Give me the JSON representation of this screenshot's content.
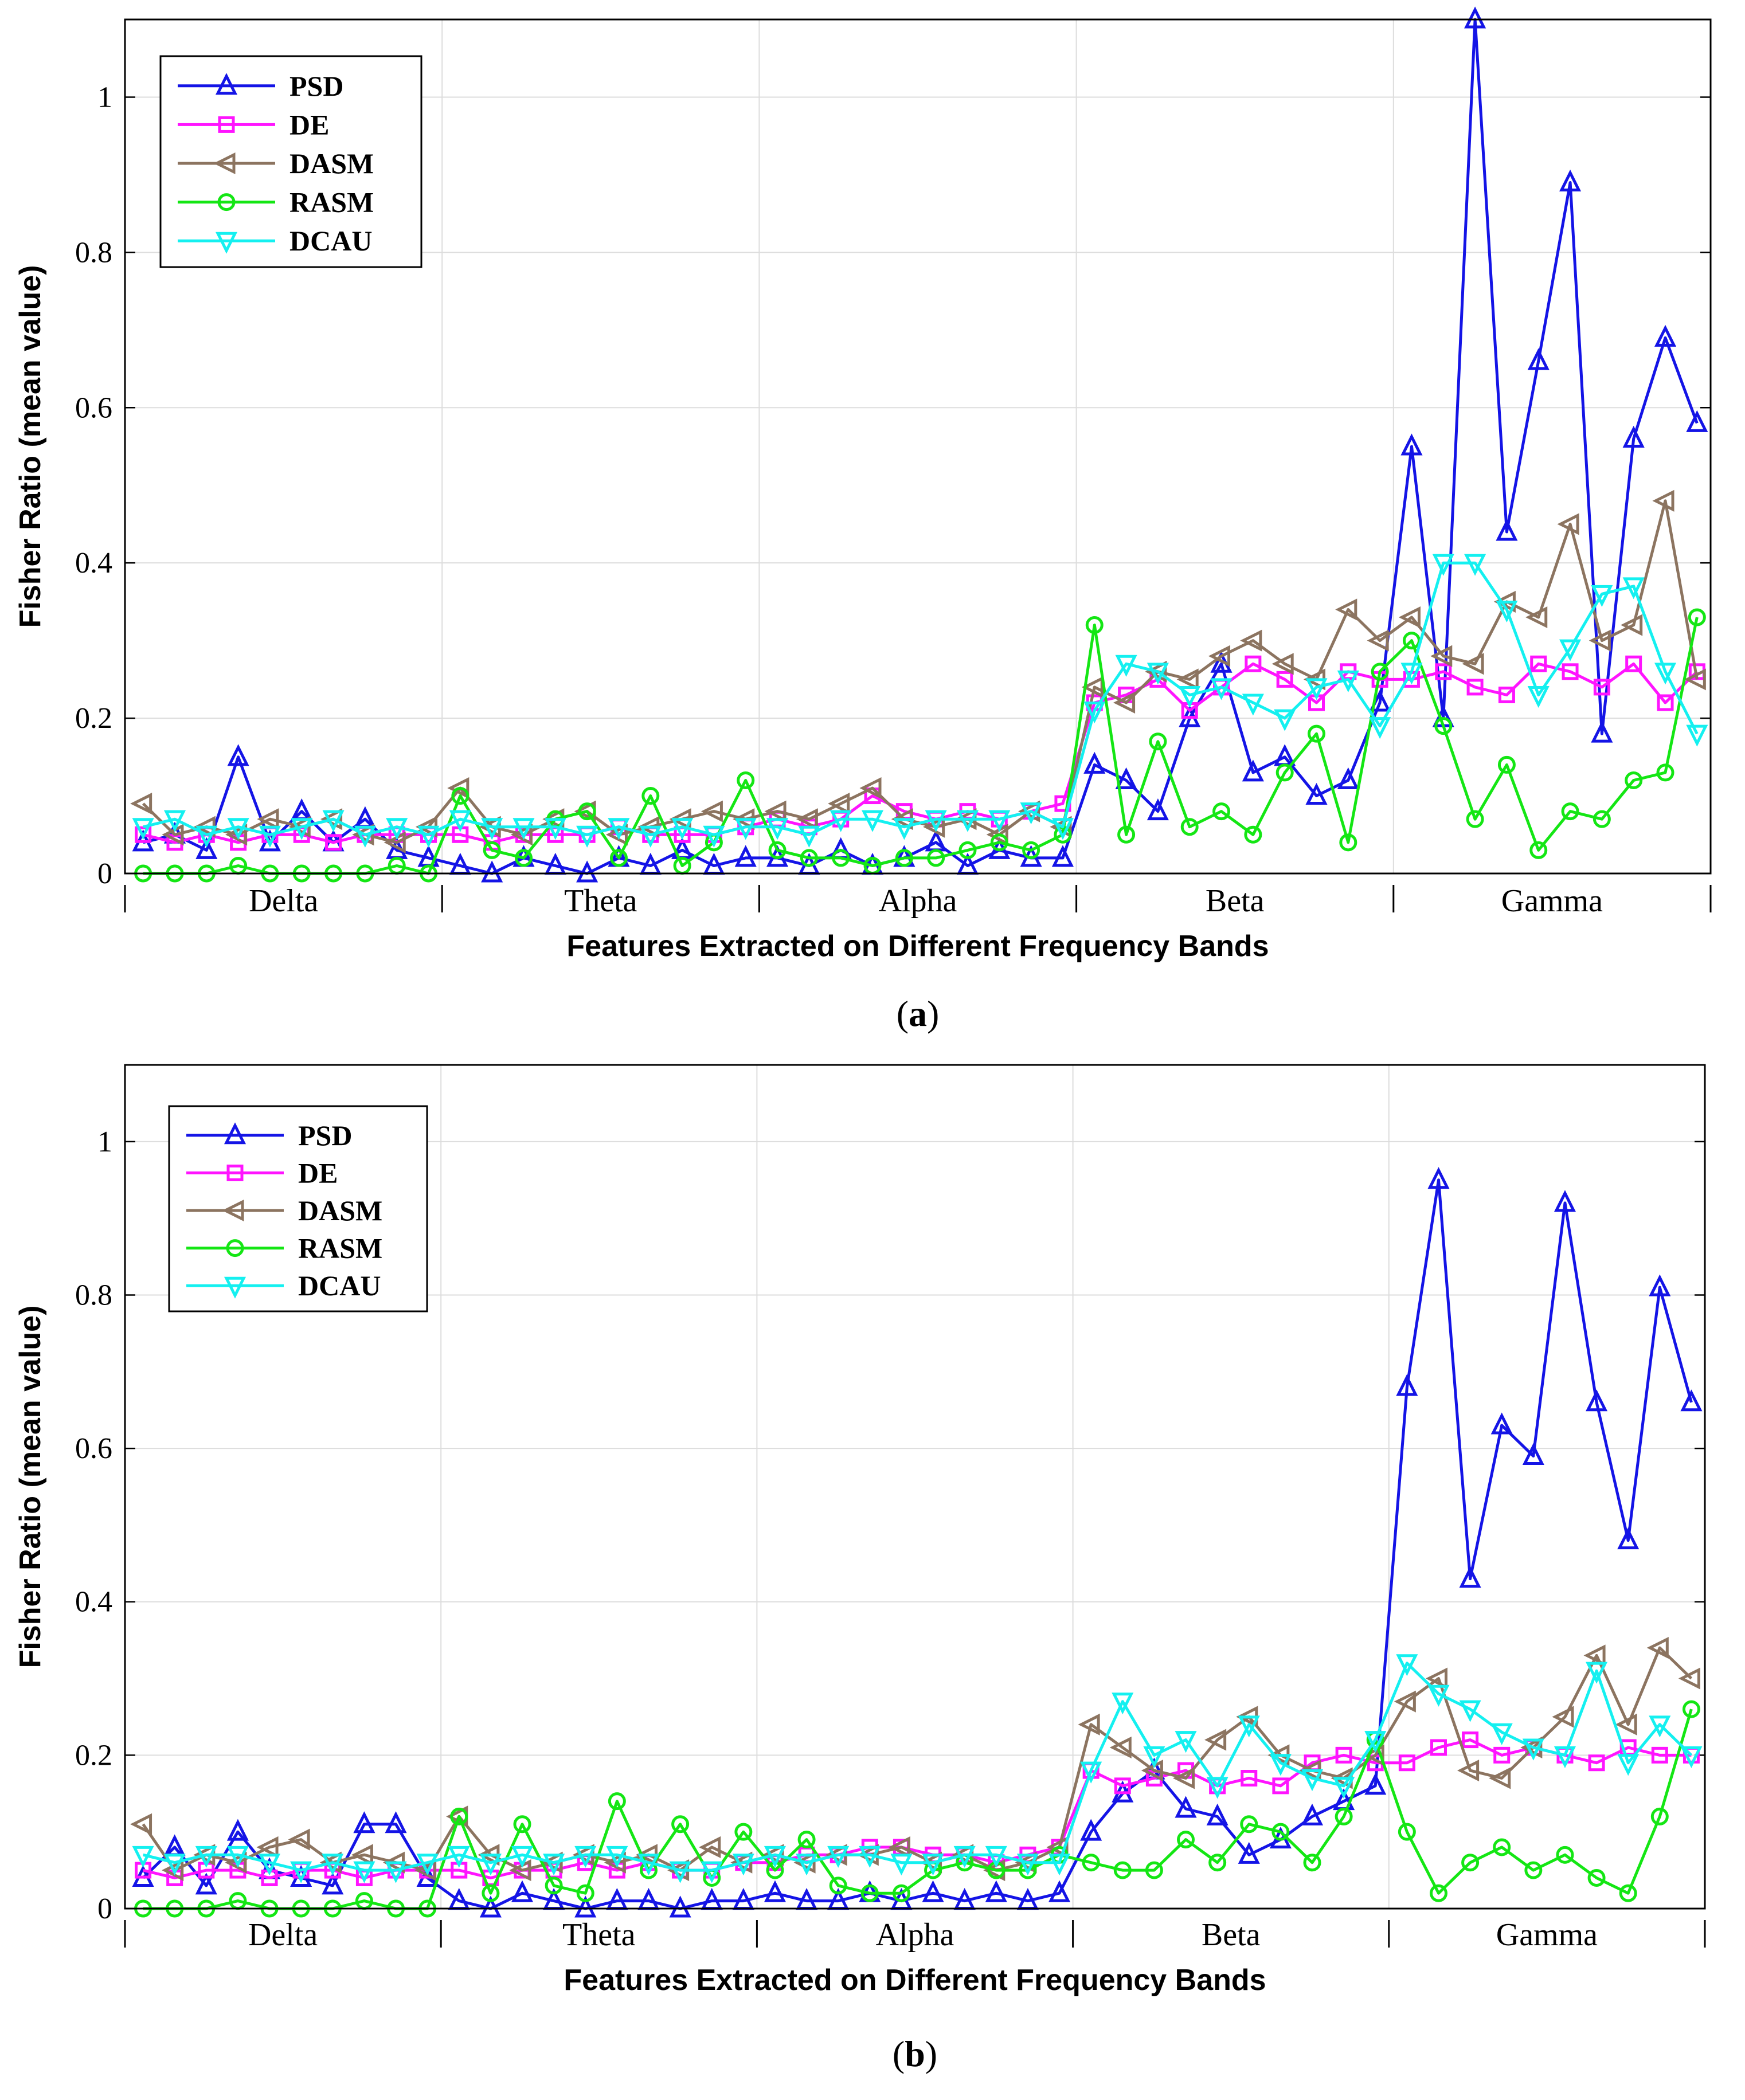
{
  "figure": {
    "panel_labels": [
      "a",
      "b"
    ],
    "series_styles": [
      {
        "name": "PSD",
        "color": "#1414e6",
        "marker": "triangle-up"
      },
      {
        "name": "DE",
        "color": "#ff14ff",
        "marker": "square"
      },
      {
        "name": "DASM",
        "color": "#8c7460",
        "marker": "triangle-left"
      },
      {
        "name": "RASM",
        "color": "#14e614",
        "marker": "circle"
      },
      {
        "name": "DCAU",
        "color": "#14f0f0",
        "marker": "triangle-down"
      }
    ]
  },
  "chart_data": [
    {
      "type": "line",
      "panel": "a",
      "ylabel": "Fisher Ratio (mean value)",
      "xlabel": "Features Extracted on Different Frequency Bands",
      "ylim": [
        0,
        1.1
      ],
      "yticks": [
        0,
        0.2,
        0.4,
        0.6,
        0.8,
        1
      ],
      "ytick_labels": [
        "0",
        "0.2",
        "0.4",
        "0.6",
        "0.8",
        "1"
      ],
      "grid": true,
      "legend_position": "top-left",
      "band_labels": [
        "Delta",
        "Theta",
        "Alpha",
        "Beta",
        "Gamma"
      ],
      "points_per_band": 10,
      "series": [
        {
          "name": "PSD",
          "values": [
            0.04,
            0.05,
            0.03,
            0.15,
            0.04,
            0.08,
            0.04,
            0.07,
            0.03,
            0.02,
            0.01,
            0.0,
            0.02,
            0.01,
            0.0,
            0.02,
            0.01,
            0.03,
            0.01,
            0.02,
            0.02,
            0.01,
            0.03,
            0.01,
            0.02,
            0.04,
            0.01,
            0.03,
            0.02,
            0.02,
            0.14,
            0.12,
            0.08,
            0.2,
            0.27,
            0.13,
            0.15,
            0.1,
            0.12,
            0.22,
            0.55,
            0.2,
            1.1,
            0.44,
            0.66,
            0.89,
            0.18,
            0.56,
            0.69,
            0.58
          ]
        },
        {
          "name": "DE",
          "values": [
            0.05,
            0.04,
            0.05,
            0.04,
            0.05,
            0.05,
            0.04,
            0.05,
            0.05,
            0.05,
            0.05,
            0.04,
            0.05,
            0.05,
            0.05,
            0.06,
            0.05,
            0.05,
            0.05,
            0.06,
            0.07,
            0.06,
            0.07,
            0.1,
            0.08,
            0.07,
            0.08,
            0.07,
            0.08,
            0.09,
            0.22,
            0.23,
            0.25,
            0.21,
            0.24,
            0.27,
            0.25,
            0.22,
            0.26,
            0.25,
            0.25,
            0.26,
            0.24,
            0.23,
            0.27,
            0.26,
            0.24,
            0.27,
            0.22,
            0.26
          ]
        },
        {
          "name": "DASM",
          "values": [
            0.09,
            0.05,
            0.06,
            0.05,
            0.07,
            0.06,
            0.07,
            0.05,
            0.04,
            0.06,
            0.11,
            0.06,
            0.05,
            0.07,
            0.08,
            0.05,
            0.06,
            0.07,
            0.08,
            0.07,
            0.08,
            0.07,
            0.09,
            0.11,
            0.07,
            0.06,
            0.07,
            0.05,
            0.08,
            0.06,
            0.24,
            0.22,
            0.26,
            0.25,
            0.28,
            0.3,
            0.27,
            0.25,
            0.34,
            0.3,
            0.33,
            0.28,
            0.27,
            0.35,
            0.33,
            0.45,
            0.3,
            0.32,
            0.48,
            0.25
          ]
        },
        {
          "name": "RASM",
          "values": [
            0.0,
            0.0,
            0.0,
            0.01,
            0.0,
            0.0,
            0.0,
            0.0,
            0.01,
            0.0,
            0.1,
            0.03,
            0.02,
            0.07,
            0.08,
            0.02,
            0.1,
            0.01,
            0.04,
            0.12,
            0.03,
            0.02,
            0.02,
            0.01,
            0.02,
            0.02,
            0.03,
            0.04,
            0.03,
            0.05,
            0.32,
            0.05,
            0.17,
            0.06,
            0.08,
            0.05,
            0.13,
            0.18,
            0.04,
            0.26,
            0.3,
            0.19,
            0.07,
            0.14,
            0.03,
            0.08,
            0.07,
            0.12,
            0.13,
            0.33
          ]
        },
        {
          "name": "DCAU",
          "values": [
            0.06,
            0.07,
            0.05,
            0.06,
            0.05,
            0.06,
            0.07,
            0.05,
            0.06,
            0.05,
            0.07,
            0.06,
            0.06,
            0.06,
            0.05,
            0.06,
            0.05,
            0.06,
            0.05,
            0.06,
            0.06,
            0.05,
            0.07,
            0.07,
            0.06,
            0.07,
            0.07,
            0.07,
            0.08,
            0.06,
            0.21,
            0.27,
            0.26,
            0.23,
            0.24,
            0.22,
            0.2,
            0.24,
            0.25,
            0.19,
            0.26,
            0.4,
            0.4,
            0.34,
            0.23,
            0.29,
            0.36,
            0.37,
            0.26,
            0.18
          ]
        }
      ]
    },
    {
      "type": "line",
      "panel": "b",
      "ylabel": "Fisher Ratio (mean value)",
      "xlabel": "Features Extracted on Different Frequency Bands",
      "ylim": [
        0,
        1.1
      ],
      "yticks": [
        0,
        0.2,
        0.4,
        0.6,
        0.8,
        1
      ],
      "ytick_labels": [
        "0",
        "0.2",
        "0.4",
        "0.6",
        "0.8",
        "1"
      ],
      "grid": true,
      "legend_position": "top-left",
      "band_labels": [
        "Delta",
        "Theta",
        "Alpha",
        "Beta",
        "Gamma"
      ],
      "points_per_band": 10,
      "series": [
        {
          "name": "PSD",
          "values": [
            0.04,
            0.08,
            0.03,
            0.1,
            0.05,
            0.04,
            0.03,
            0.11,
            0.11,
            0.04,
            0.01,
            0.0,
            0.02,
            0.01,
            0.0,
            0.01,
            0.01,
            0.0,
            0.01,
            0.01,
            0.02,
            0.01,
            0.01,
            0.02,
            0.01,
            0.02,
            0.01,
            0.02,
            0.01,
            0.02,
            0.1,
            0.15,
            0.18,
            0.13,
            0.12,
            0.07,
            0.09,
            0.12,
            0.14,
            0.16,
            0.68,
            0.95,
            0.43,
            0.63,
            0.59,
            0.92,
            0.66,
            0.48,
            0.81,
            0.66
          ]
        },
        {
          "name": "DE",
          "values": [
            0.05,
            0.04,
            0.05,
            0.05,
            0.04,
            0.05,
            0.05,
            0.04,
            0.05,
            0.05,
            0.05,
            0.04,
            0.05,
            0.05,
            0.06,
            0.05,
            0.06,
            0.05,
            0.05,
            0.06,
            0.06,
            0.07,
            0.07,
            0.08,
            0.08,
            0.07,
            0.07,
            0.06,
            0.07,
            0.08,
            0.18,
            0.16,
            0.17,
            0.18,
            0.16,
            0.17,
            0.16,
            0.19,
            0.2,
            0.19,
            0.19,
            0.21,
            0.22,
            0.2,
            0.21,
            0.2,
            0.19,
            0.21,
            0.2,
            0.2
          ]
        },
        {
          "name": "DASM",
          "values": [
            0.11,
            0.05,
            0.07,
            0.06,
            0.08,
            0.09,
            0.06,
            0.07,
            0.06,
            0.05,
            0.12,
            0.07,
            0.05,
            0.06,
            0.07,
            0.06,
            0.07,
            0.05,
            0.08,
            0.06,
            0.07,
            0.06,
            0.07,
            0.07,
            0.08,
            0.06,
            0.07,
            0.05,
            0.06,
            0.08,
            0.24,
            0.21,
            0.18,
            0.17,
            0.22,
            0.25,
            0.2,
            0.18,
            0.17,
            0.2,
            0.27,
            0.3,
            0.18,
            0.17,
            0.21,
            0.25,
            0.33,
            0.24,
            0.34,
            0.3
          ]
        },
        {
          "name": "RASM",
          "values": [
            0.0,
            0.0,
            0.0,
            0.01,
            0.0,
            0.0,
            0.0,
            0.01,
            0.0,
            0.0,
            0.12,
            0.02,
            0.11,
            0.03,
            0.02,
            0.14,
            0.05,
            0.11,
            0.04,
            0.1,
            0.05,
            0.09,
            0.03,
            0.02,
            0.02,
            0.05,
            0.06,
            0.05,
            0.05,
            0.07,
            0.06,
            0.05,
            0.05,
            0.09,
            0.06,
            0.11,
            0.1,
            0.06,
            0.12,
            0.22,
            0.1,
            0.02,
            0.06,
            0.08,
            0.05,
            0.07,
            0.04,
            0.02,
            0.12,
            0.26
          ]
        },
        {
          "name": "DCAU",
          "values": [
            0.07,
            0.06,
            0.07,
            0.07,
            0.06,
            0.05,
            0.06,
            0.05,
            0.05,
            0.06,
            0.07,
            0.06,
            0.07,
            0.06,
            0.07,
            0.07,
            0.06,
            0.05,
            0.05,
            0.06,
            0.07,
            0.06,
            0.07,
            0.07,
            0.06,
            0.06,
            0.07,
            0.07,
            0.06,
            0.06,
            0.18,
            0.27,
            0.2,
            0.22,
            0.16,
            0.24,
            0.19,
            0.17,
            0.16,
            0.22,
            0.32,
            0.28,
            0.26,
            0.23,
            0.21,
            0.2,
            0.31,
            0.19,
            0.24,
            0.2
          ]
        }
      ]
    }
  ]
}
